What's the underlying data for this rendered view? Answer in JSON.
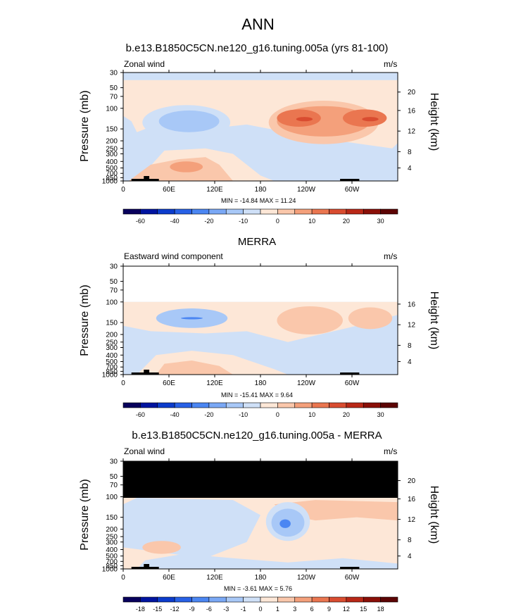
{
  "main_title": "ANN",
  "colors": {
    "cb1": [
      "#08005c",
      "#0014a0",
      "#0c3ccc",
      "#2861e6",
      "#4b86f2",
      "#7aa8f5",
      "#a8c8f7",
      "#cfe0f7",
      "#fde7d7",
      "#fac7ab",
      "#f4a07b",
      "#ea7650",
      "#d94c30",
      "#b92817",
      "#8a0f08",
      "#5c0404"
    ],
    "cb3": [
      "#08005c",
      "#0014a0",
      "#0c3ccc",
      "#2861e6",
      "#4b86f2",
      "#7aa8f5",
      "#a8c8f7",
      "#cfe0f7",
      "#fde7d7",
      "#fac7ab",
      "#f4a07b",
      "#ea7650",
      "#d94c30",
      "#b92817",
      "#8a0f08",
      "#5c0404"
    ]
  },
  "chart_data": [
    {
      "type": "heatmap",
      "title": "b.e13.B1850C5CN.ne120_g16.tuning.005a (yrs 81-100)",
      "left_label": "Zonal wind",
      "units": "m/s",
      "ylabel": "Pressure (mb)",
      "y2label": "Height (km)",
      "x_ticks": [
        "0",
        "60E",
        "120E",
        "180",
        "120W",
        "60W"
      ],
      "y_ticks": [
        "30",
        "50",
        "70",
        "100",
        "150",
        "200",
        "250",
        "300",
        "400",
        "500",
        "700",
        "850",
        "1000"
      ],
      "y2_ticks": [
        "20",
        "16",
        "12",
        "8",
        "4"
      ],
      "min_max": "MIN = -14.84  MAX =  11.24",
      "colorbar_labels": [
        "-60",
        "-40",
        "-20",
        "-10",
        "0",
        "10",
        "20",
        "30"
      ]
    },
    {
      "type": "heatmap",
      "title": "MERRA",
      "left_label": "Eastward wind component",
      "units": "m/s",
      "ylabel": "Pressure (mb)",
      "y2label": "Height (km)",
      "x_ticks": [
        "0",
        "60E",
        "120E",
        "180",
        "120W",
        "60W"
      ],
      "y_ticks": [
        "30",
        "50",
        "70",
        "100",
        "150",
        "200",
        "250",
        "300",
        "400",
        "500",
        "700",
        "850",
        "1000"
      ],
      "y2_ticks": [
        "16",
        "12",
        "8",
        "4"
      ],
      "min_max": "MIN = -15.41  MAX =   9.64",
      "colorbar_labels": [
        "-60",
        "-40",
        "-20",
        "-10",
        "0",
        "10",
        "20",
        "30"
      ]
    },
    {
      "type": "heatmap",
      "title": "b.e13.B1850C5CN.ne120_g16.tuning.005a - MERRA",
      "left_label": "Zonal wind",
      "units": "m/s",
      "ylabel": "Pressure (mb)",
      "y2label": "Height (km)",
      "x_ticks": [
        "0",
        "60E",
        "120E",
        "180",
        "120W",
        "60W"
      ],
      "y_ticks": [
        "30",
        "50",
        "70",
        "100",
        "150",
        "200",
        "250",
        "300",
        "400",
        "500",
        "700",
        "850",
        "1000"
      ],
      "y2_ticks": [
        "20",
        "16",
        "12",
        "8",
        "4"
      ],
      "min_max": "MIN =  -3.61  MAX =   5.76",
      "colorbar_labels": [
        "-18",
        "-15",
        "-12",
        "-9",
        "-6",
        "-3",
        "-1",
        "0",
        "1",
        "3",
        "6",
        "9",
        "12",
        "15",
        "18"
      ]
    }
  ]
}
